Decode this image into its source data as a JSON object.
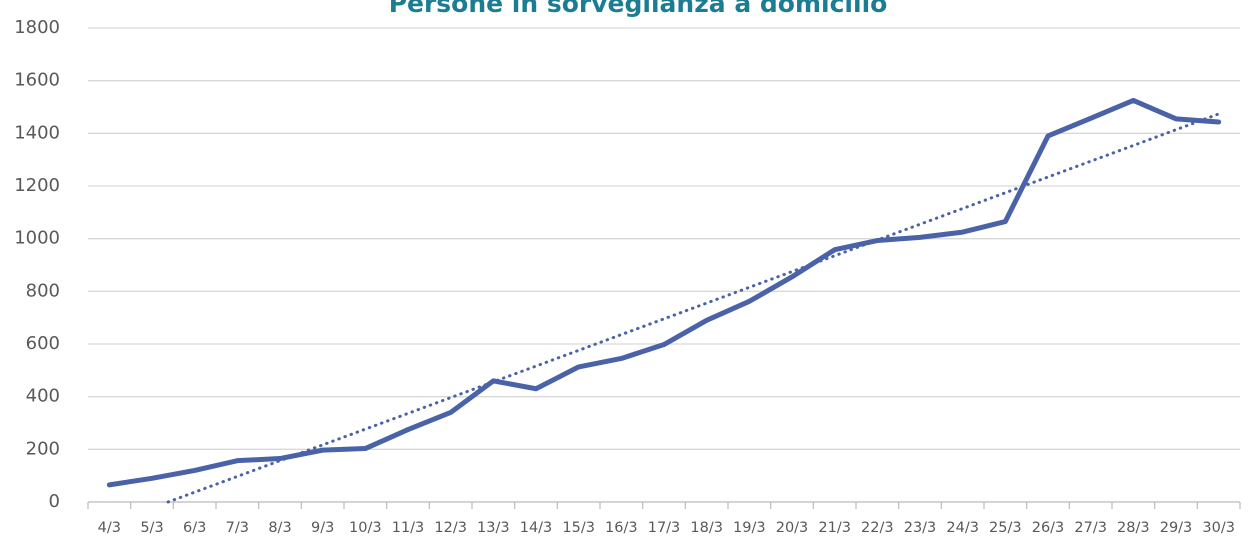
{
  "chart_data": {
    "type": "line",
    "title": "Persone in sorveglianza a domicilio",
    "categories": [
      "4/3",
      "5/3",
      "6/3",
      "7/3",
      "8/3",
      "9/3",
      "10/3",
      "11/3",
      "12/3",
      "13/3",
      "14/3",
      "15/3",
      "16/3",
      "17/3",
      "18/3",
      "19/3",
      "20/3",
      "21/3",
      "22/3",
      "23/3",
      "24/3",
      "25/3",
      "26/3",
      "27/3",
      "28/3",
      "29/3",
      "30/3"
    ],
    "series": [
      {
        "name": "Persone in sorveglianza a domicilio",
        "color": "#4a62a8",
        "values": [
          65,
          90,
          120,
          157,
          165,
          197,
          203,
          275,
          340,
          460,
          430,
          513,
          545,
          598,
          690,
          762,
          855,
          958,
          993,
          1005,
          1025,
          1065,
          1390,
          1457,
          1525,
          1455,
          1443
        ]
      }
    ],
    "ylim": [
      0,
      1800
    ],
    "yticks": [
      0,
      200,
      400,
      600,
      800,
      1000,
      1200,
      1400,
      1600,
      1800
    ],
    "grid": true,
    "trendline": true
  }
}
